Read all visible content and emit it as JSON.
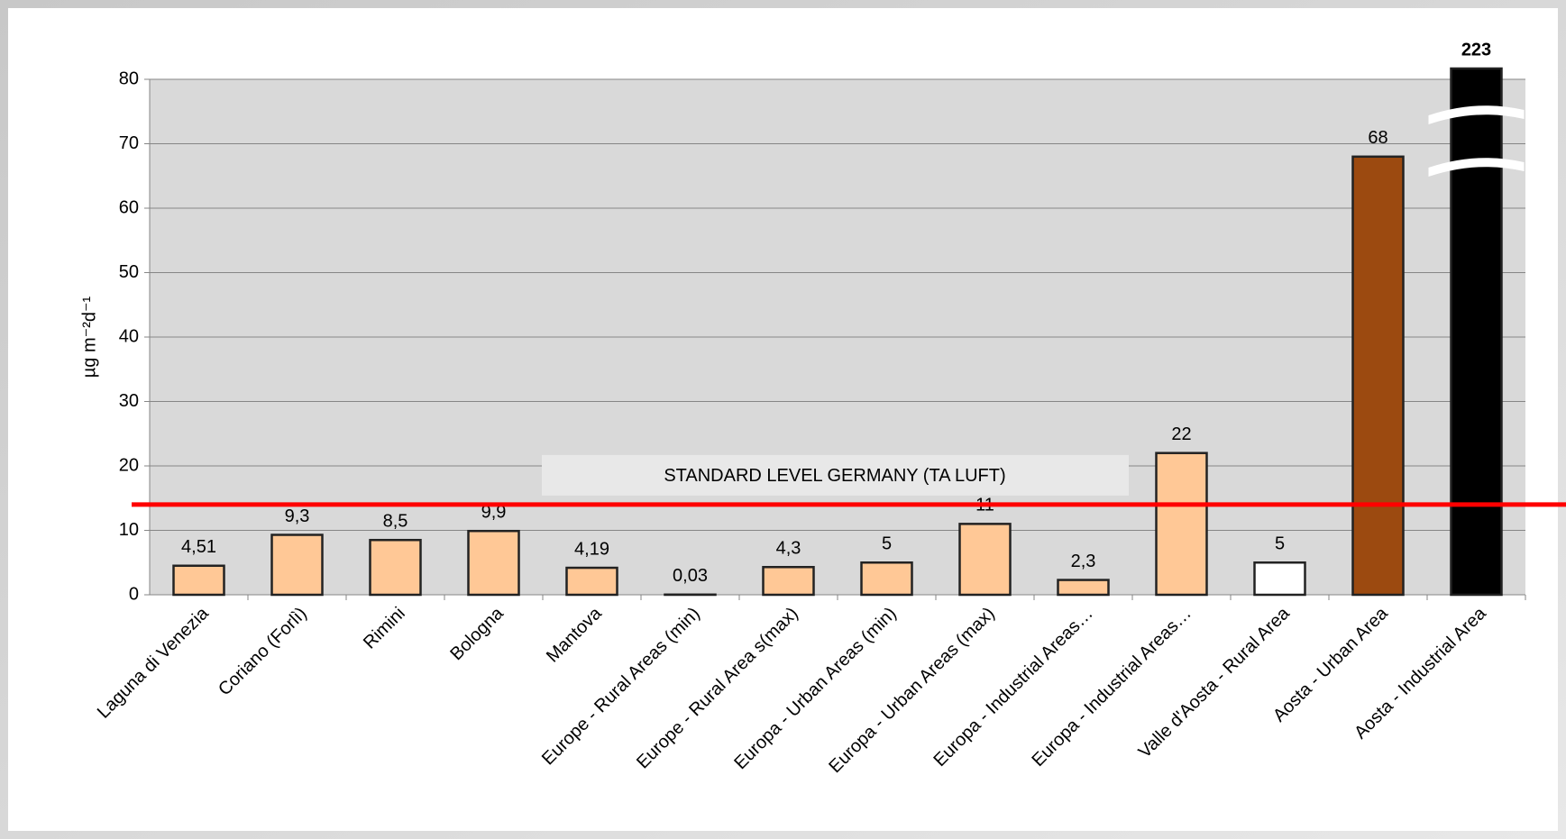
{
  "chart_data": {
    "type": "bar",
    "ylabel": "µg m⁻²d⁻¹",
    "categories": [
      "Laguna di Venezia",
      "Coriano (Forlì)",
      "Rimini",
      "Bologna",
      "Mantova",
      "Europe - Rural Areas (min)",
      "Europe - Rural Area s(max)",
      "Europa - Urban Areas (min)",
      "Europa - Urban Areas (max)",
      "Europa - Industrial Areas…",
      "Europa - Industrial Areas…",
      "Valle d'Aosta - Rural Area",
      "Aosta - Urban Area",
      "Aosta - Industrial Area"
    ],
    "values": [
      4.51,
      9.3,
      8.5,
      9.9,
      4.19,
      0.03,
      4.3,
      5,
      11,
      2.3,
      22,
      5,
      68,
      223
    ],
    "value_labels": [
      "4,51",
      "9,3",
      "8,5",
      "9,9",
      "4,19",
      "0,03",
      "4,3",
      "5",
      "11",
      "2,3",
      "22",
      "5",
      "68",
      "223"
    ],
    "colors": [
      "#ffc896",
      "#ffc896",
      "#ffc896",
      "#ffc896",
      "#ffc896",
      "#ffc896",
      "#ffc896",
      "#ffc896",
      "#ffc896",
      "#ffc896",
      "#ffc896",
      "#ffffff",
      "#9c4a10",
      "#000000"
    ],
    "ylim": [
      0,
      80
    ],
    "yticks": [
      0,
      10,
      20,
      30,
      40,
      50,
      60,
      70,
      80
    ],
    "grid": true,
    "broken_axis": true,
    "reference_line": {
      "value": 14,
      "label": "STANDARD LEVEL GERMANY (TA LUFT)",
      "color": "#ff0000"
    }
  }
}
